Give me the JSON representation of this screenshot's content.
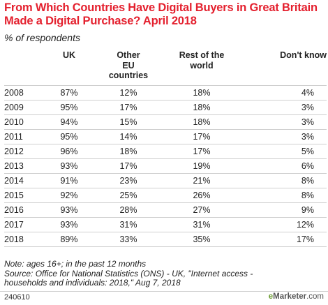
{
  "title": "From Which Countries Have Digital Buyers in Great Britain Made a Digital Purchase? April 2018",
  "subtitle": "% of respondents",
  "chart_data": {
    "type": "table",
    "columns": [
      "",
      "UK",
      "Other EU countries",
      "Rest of the world",
      "Don't know"
    ],
    "rows": [
      {
        "year": "2008",
        "uk": "87%",
        "other_eu": "12%",
        "rest": "18%",
        "dont_know": "4%"
      },
      {
        "year": "2009",
        "uk": "95%",
        "other_eu": "17%",
        "rest": "18%",
        "dont_know": "3%"
      },
      {
        "year": "2010",
        "uk": "94%",
        "other_eu": "15%",
        "rest": "18%",
        "dont_know": "3%"
      },
      {
        "year": "2011",
        "uk": "95%",
        "other_eu": "14%",
        "rest": "17%",
        "dont_know": "3%"
      },
      {
        "year": "2012",
        "uk": "96%",
        "other_eu": "18%",
        "rest": "17%",
        "dont_know": "5%"
      },
      {
        "year": "2013",
        "uk": "93%",
        "other_eu": "17%",
        "rest": "19%",
        "dont_know": "6%"
      },
      {
        "year": "2014",
        "uk": "91%",
        "other_eu": "23%",
        "rest": "21%",
        "dont_know": "8%"
      },
      {
        "year": "2015",
        "uk": "92%",
        "other_eu": "25%",
        "rest": "26%",
        "dont_know": "8%"
      },
      {
        "year": "2016",
        "uk": "93%",
        "other_eu": "28%",
        "rest": "27%",
        "dont_know": "9%"
      },
      {
        "year": "2017",
        "uk": "93%",
        "other_eu": "31%",
        "rest": "31%",
        "dont_know": "12%"
      },
      {
        "year": "2018",
        "uk": "89%",
        "other_eu": "33%",
        "rest": "35%",
        "dont_know": "17%"
      }
    ]
  },
  "headers": {
    "uk": "UK",
    "other_eu_line1": "Other",
    "other_eu_line2": "EU",
    "other_eu_line3": "countries",
    "rest_line1": "Rest of the",
    "rest_line2": "world",
    "dont_know": "Don't know"
  },
  "note_line1": "Note: ages 16+; in the past 12 months",
  "note_line2": "Source: Office for National Statistics (ONS) - UK, \"Internet access -",
  "note_line3": "households and individuals: 2018,\" Aug 7, 2018",
  "footer": {
    "chart_id": "240610",
    "brand_prefix": "e",
    "brand_main": "Marketer",
    "brand_suffix": ".com"
  },
  "colors": {
    "title": "#e4202e",
    "brand_green": "#6e9e35",
    "rule": "#cfcfcf"
  }
}
